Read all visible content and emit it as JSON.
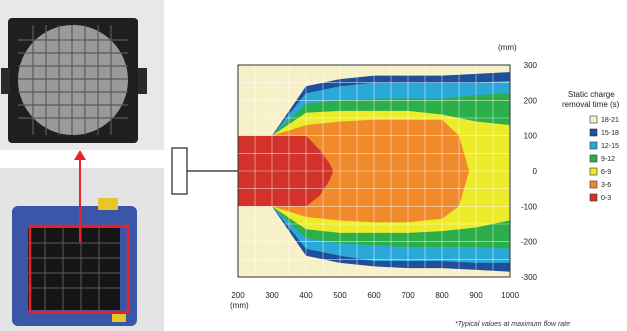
{
  "chart_data": {
    "type": "heatmap",
    "title": "",
    "xlabel": "(mm)",
    "ylabel": "(mm)",
    "x_ticks": [
      200,
      300,
      400,
      500,
      600,
      700,
      800,
      900,
      1000
    ],
    "y_ticks": [
      300,
      200,
      100,
      0,
      -100,
      -200,
      -300
    ],
    "xlim": [
      200,
      1000
    ],
    "ylim": [
      -300,
      300
    ],
    "grid": true,
    "legend": {
      "title_lines": [
        "Static charge",
        "removal time (s)"
      ],
      "placement": "right",
      "entries": [
        {
          "label": "18-21",
          "color": "#f6f1c8"
        },
        {
          "label": "15-18",
          "color": "#1f4f9c"
        },
        {
          "label": "12-15",
          "color": "#2aa9d8"
        },
        {
          "label": "9-12",
          "color": "#2cae4a"
        },
        {
          "label": "6-9",
          "color": "#ecec2a"
        },
        {
          "label": "3-6",
          "color": "#f08a2a"
        },
        {
          "label": "0-3",
          "color": "#d2322a"
        }
      ]
    },
    "bands": [
      {
        "range": "15-18",
        "color": "#1f4f9c",
        "upper": [
          [
            200,
            100
          ],
          [
            300,
            100
          ],
          [
            400,
            240
          ],
          [
            500,
            260
          ],
          [
            600,
            270
          ],
          [
            700,
            270
          ],
          [
            800,
            270
          ],
          [
            900,
            275
          ],
          [
            1000,
            280
          ]
        ],
        "lower": [
          [
            200,
            -100
          ],
          [
            300,
            -100
          ],
          [
            400,
            -240
          ],
          [
            500,
            -260
          ],
          [
            600,
            -270
          ],
          [
            700,
            -275
          ],
          [
            800,
            -275
          ],
          [
            900,
            -280
          ],
          [
            1000,
            -285
          ]
        ]
      },
      {
        "range": "12-15",
        "color": "#2aa9d8",
        "upper": [
          [
            200,
            100
          ],
          [
            300,
            100
          ],
          [
            400,
            220
          ],
          [
            500,
            240
          ],
          [
            600,
            250
          ],
          [
            700,
            250
          ],
          [
            800,
            250
          ],
          [
            900,
            250
          ],
          [
            1000,
            255
          ]
        ],
        "lower": [
          [
            200,
            -100
          ],
          [
            300,
            -100
          ],
          [
            400,
            -220
          ],
          [
            500,
            -240
          ],
          [
            600,
            -255
          ],
          [
            700,
            -255
          ],
          [
            800,
            -255
          ],
          [
            900,
            -260
          ],
          [
            1000,
            -260
          ]
        ]
      },
      {
        "range": "9-12",
        "color": "#2cae4a",
        "upper": [
          [
            200,
            100
          ],
          [
            300,
            100
          ],
          [
            400,
            190
          ],
          [
            500,
            200
          ],
          [
            600,
            205
          ],
          [
            700,
            205
          ],
          [
            800,
            205
          ],
          [
            900,
            215
          ],
          [
            1000,
            220
          ]
        ],
        "lower": [
          [
            200,
            -100
          ],
          [
            300,
            -100
          ],
          [
            400,
            -190
          ],
          [
            500,
            -205
          ],
          [
            600,
            -210
          ],
          [
            700,
            -215
          ],
          [
            800,
            -215
          ],
          [
            900,
            -215
          ],
          [
            1000,
            -220
          ]
        ]
      },
      {
        "range": "6-9",
        "color": "#ecec2a",
        "upper": [
          [
            200,
            100
          ],
          [
            300,
            100
          ],
          [
            400,
            165
          ],
          [
            500,
            170
          ],
          [
            600,
            170
          ],
          [
            700,
            170
          ],
          [
            800,
            160
          ],
          [
            900,
            140
          ],
          [
            1000,
            130
          ]
        ],
        "lower": [
          [
            200,
            -100
          ],
          [
            300,
            -100
          ],
          [
            400,
            -165
          ],
          [
            500,
            -175
          ],
          [
            600,
            -175
          ],
          [
            700,
            -175
          ],
          [
            800,
            -170
          ],
          [
            900,
            -160
          ],
          [
            1000,
            -140
          ]
        ]
      },
      {
        "range": "3-6",
        "color": "#f08a2a",
        "upper": [
          [
            200,
            100
          ],
          [
            300,
            100
          ],
          [
            400,
            130
          ],
          [
            500,
            140
          ],
          [
            600,
            145
          ],
          [
            700,
            145
          ],
          [
            800,
            145
          ],
          [
            850,
            100
          ],
          [
            880,
            0
          ]
        ],
        "lower": [
          [
            200,
            -100
          ],
          [
            300,
            -100
          ],
          [
            400,
            -130
          ],
          [
            500,
            -140
          ],
          [
            600,
            -145
          ],
          [
            700,
            -145
          ],
          [
            800,
            -135
          ],
          [
            850,
            -100
          ],
          [
            880,
            0
          ]
        ]
      },
      {
        "range": "0-3",
        "color": "#d2322a",
        "upper": [
          [
            200,
            100
          ],
          [
            300,
            100
          ],
          [
            400,
            100
          ],
          [
            440,
            60
          ],
          [
            470,
            20
          ],
          [
            480,
            0
          ]
        ],
        "lower": [
          [
            200,
            -100
          ],
          [
            300,
            -100
          ],
          [
            400,
            -100
          ],
          [
            440,
            -70
          ],
          [
            470,
            -25
          ],
          [
            480,
            0
          ]
        ]
      }
    ],
    "footnote": "*Typical values at maximum flow rate"
  }
}
